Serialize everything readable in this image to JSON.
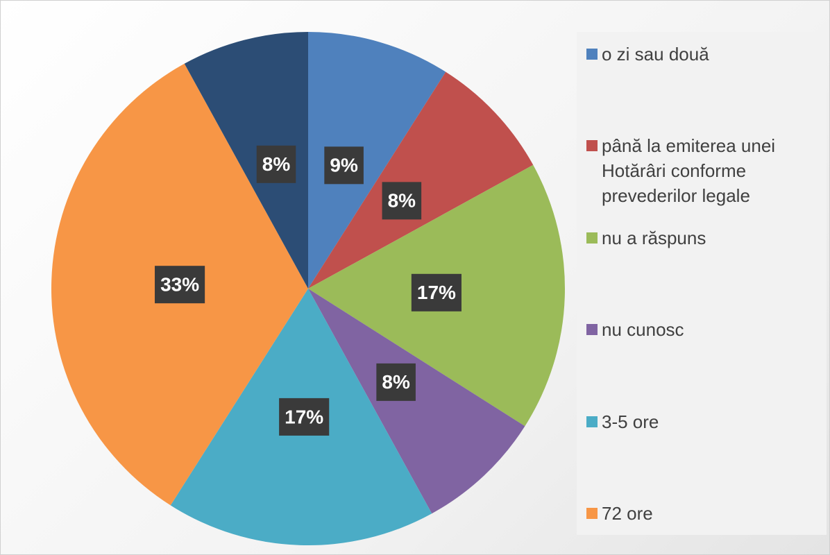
{
  "chart_data": {
    "type": "pie",
    "categories": [
      "o zi sau două",
      "până la emiterea unei Hotărâri conforme prevederilor legale",
      "nu a răspuns",
      "nu cunosc",
      "3-5 ore",
      "72 ore",
      null
    ],
    "values": [
      9,
      8,
      17,
      8,
      17,
      33,
      8
    ],
    "value_labels": [
      "9%",
      "8%",
      "17%",
      "8%",
      "17%",
      "33%",
      "8%"
    ],
    "colors": [
      "#4f81bd",
      "#c0504d",
      "#9bbb59",
      "#8064a2",
      "#4bacc6",
      "#f79646",
      "#2c4d75"
    ],
    "legend": "right"
  }
}
